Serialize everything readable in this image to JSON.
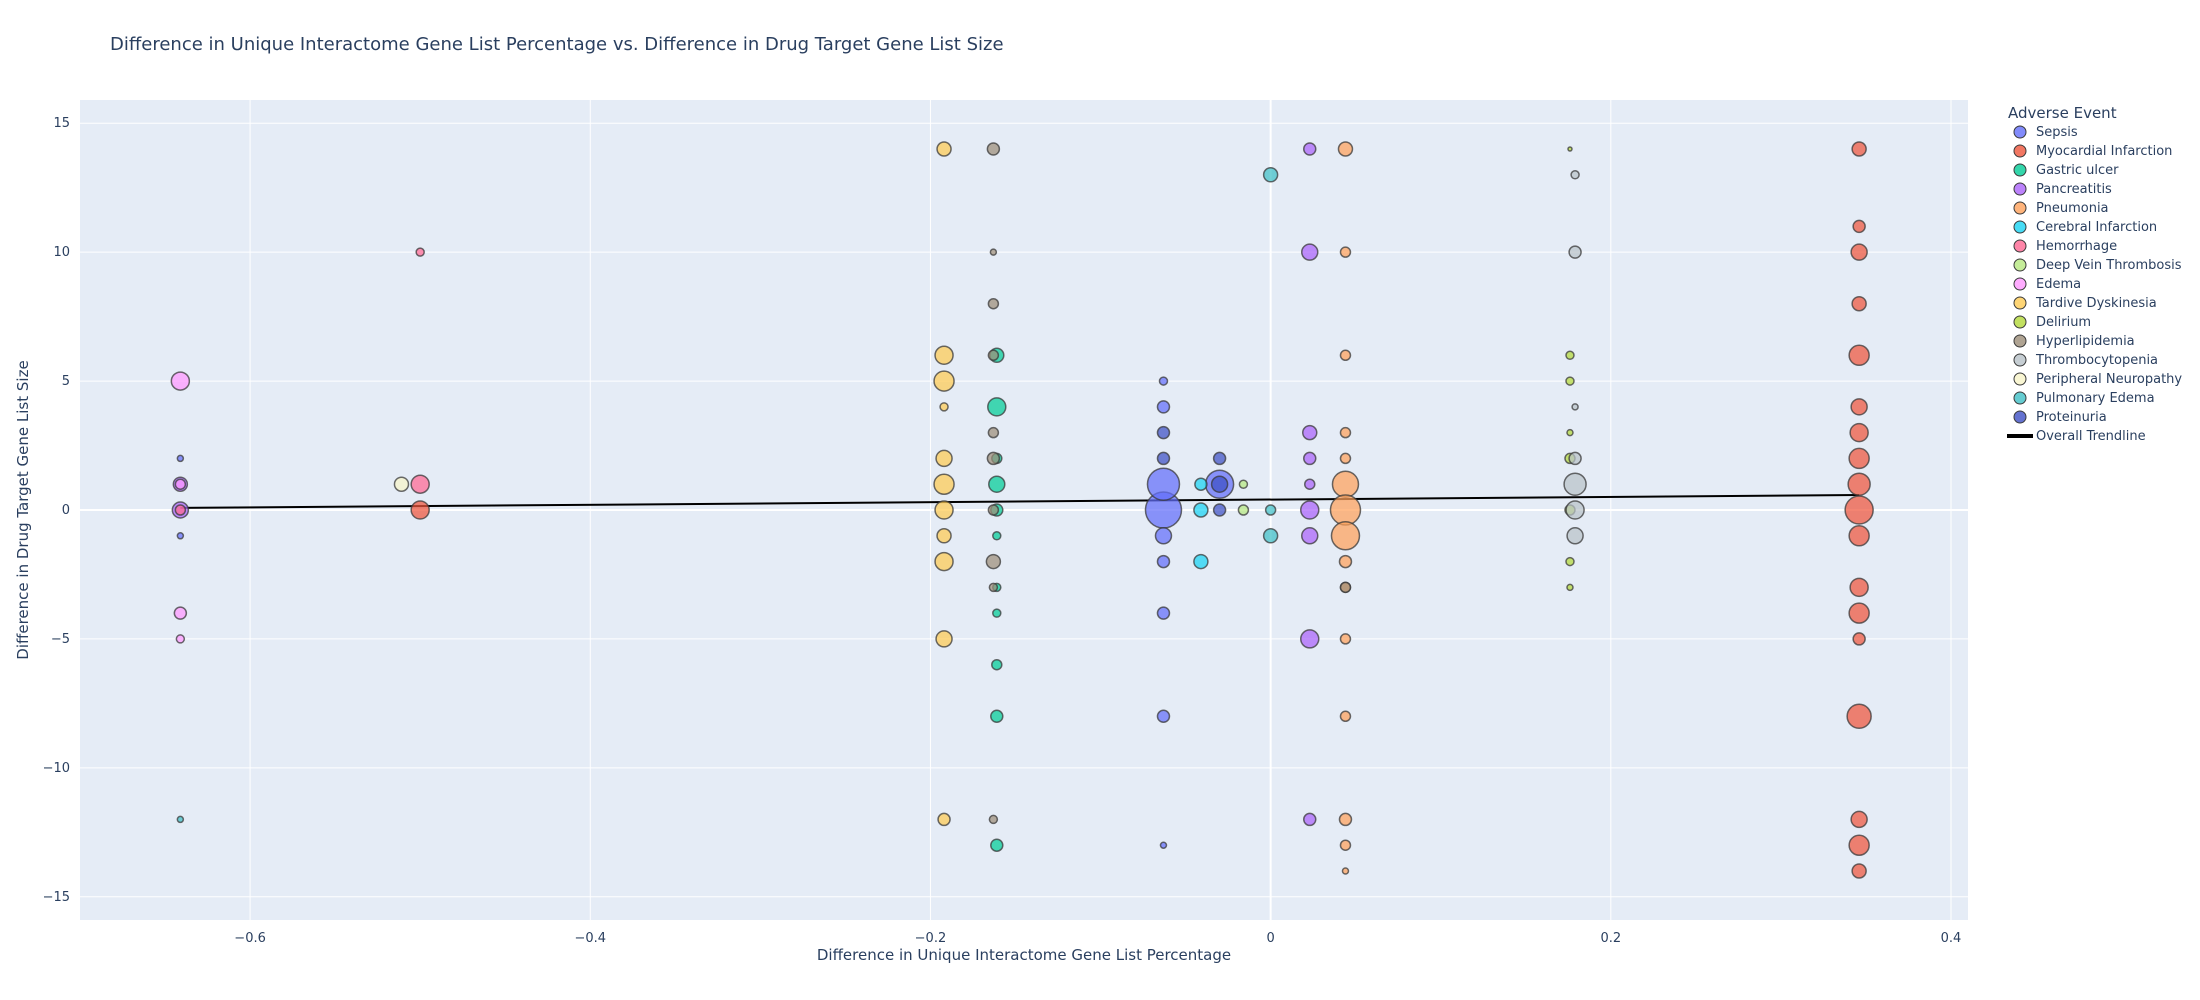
{
  "chart_data": {
    "type": "scatter",
    "title": "Difference in Unique Interactome Gene List Percentage vs. Difference in Drug Target Gene List Size",
    "xlabel": "Difference in Unique Interactome Gene List Percentage",
    "ylabel": "Difference in Drug Target Gene List Size",
    "xlim": [
      -0.7,
      0.41
    ],
    "ylim": [
      -15.9,
      15.9
    ],
    "x_ticks": [
      -0.6,
      -0.4,
      -0.2,
      0,
      0.2,
      0.4
    ],
    "x_tick_labels": [
      "−0.6",
      "−0.4",
      "−0.2",
      "0",
      "0.2",
      "0.4"
    ],
    "y_ticks": [
      -15,
      -10,
      -5,
      0,
      5,
      10,
      15
    ],
    "y_tick_labels": [
      "−15",
      "−10",
      "−5",
      "0",
      "5",
      "10",
      "15"
    ],
    "grid": true,
    "legend_title": "Adverse Event",
    "legend_position": "right",
    "series": [
      {
        "name": "Sepsis",
        "color": "#636efa",
        "points": [
          {
            "x": -0.063,
            "y": 0,
            "s": 18
          },
          {
            "x": -0.063,
            "y": 1,
            "s": 16
          },
          {
            "x": -0.063,
            "y": -1,
            "s": 8
          },
          {
            "x": -0.063,
            "y": -2,
            "s": 6
          },
          {
            "x": -0.063,
            "y": 4,
            "s": 6
          },
          {
            "x": -0.063,
            "y": -8,
            "s": 6
          },
          {
            "x": -0.063,
            "y": -4,
            "s": 6
          },
          {
            "x": -0.063,
            "y": 5,
            "s": 4
          },
          {
            "x": -0.063,
            "y": -13,
            "s": 3
          },
          {
            "x": -0.641,
            "y": 2,
            "s": 3
          },
          {
            "x": -0.641,
            "y": -1,
            "s": 3
          },
          {
            "x": -0.03,
            "y": 1,
            "s": 14
          }
        ]
      },
      {
        "name": "Myocardial Infarction",
        "color": "#ef553b",
        "points": [
          {
            "x": 0.346,
            "y": 14,
            "s": 7
          },
          {
            "x": 0.346,
            "y": 11,
            "s": 6
          },
          {
            "x": 0.346,
            "y": 10,
            "s": 8
          },
          {
            "x": 0.346,
            "y": 8,
            "s": 7
          },
          {
            "x": 0.346,
            "y": 6,
            "s": 10
          },
          {
            "x": 0.346,
            "y": 4,
            "s": 8
          },
          {
            "x": 0.346,
            "y": 3,
            "s": 9
          },
          {
            "x": 0.346,
            "y": 2,
            "s": 10
          },
          {
            "x": 0.346,
            "y": 1,
            "s": 11
          },
          {
            "x": 0.346,
            "y": 0,
            "s": 14
          },
          {
            "x": 0.346,
            "y": -1,
            "s": 10
          },
          {
            "x": 0.346,
            "y": -3,
            "s": 9
          },
          {
            "x": 0.346,
            "y": -4,
            "s": 10
          },
          {
            "x": 0.346,
            "y": -5,
            "s": 6
          },
          {
            "x": 0.346,
            "y": -8,
            "s": 12
          },
          {
            "x": 0.346,
            "y": -12,
            "s": 8
          },
          {
            "x": 0.346,
            "y": -13,
            "s": 10
          },
          {
            "x": 0.346,
            "y": -14,
            "s": 7
          },
          {
            "x": -0.5,
            "y": 0,
            "s": 9
          }
        ]
      },
      {
        "name": "Gastric ulcer",
        "color": "#00cc96",
        "points": [
          {
            "x": -0.161,
            "y": 6,
            "s": 7
          },
          {
            "x": -0.161,
            "y": 4,
            "s": 9
          },
          {
            "x": -0.161,
            "y": 2,
            "s": 5
          },
          {
            "x": -0.161,
            "y": 1,
            "s": 8
          },
          {
            "x": -0.161,
            "y": 0,
            "s": 6
          },
          {
            "x": -0.161,
            "y": -1,
            "s": 4
          },
          {
            "x": -0.161,
            "y": -3,
            "s": 4
          },
          {
            "x": -0.161,
            "y": -4,
            "s": 4
          },
          {
            "x": -0.161,
            "y": -6,
            "s": 5
          },
          {
            "x": -0.161,
            "y": -8,
            "s": 6
          },
          {
            "x": -0.161,
            "y": -13,
            "s": 6
          }
        ]
      },
      {
        "name": "Pancreatitis",
        "color": "#ab63fa",
        "points": [
          {
            "x": 0.023,
            "y": 14,
            "s": 6
          },
          {
            "x": 0.023,
            "y": 10,
            "s": 8
          },
          {
            "x": 0.023,
            "y": 3,
            "s": 7
          },
          {
            "x": 0.023,
            "y": 2,
            "s": 6
          },
          {
            "x": 0.023,
            "y": 1,
            "s": 5
          },
          {
            "x": 0.023,
            "y": 0,
            "s": 9
          },
          {
            "x": 0.023,
            "y": -1,
            "s": 8
          },
          {
            "x": 0.023,
            "y": -5,
            "s": 9
          },
          {
            "x": 0.023,
            "y": -12,
            "s": 6
          },
          {
            "x": -0.641,
            "y": 1,
            "s": 7
          },
          {
            "x": -0.641,
            "y": 0,
            "s": 8
          }
        ]
      },
      {
        "name": "Pneumonia",
        "color": "#ffa15a",
        "points": [
          {
            "x": 0.044,
            "y": 14,
            "s": 7
          },
          {
            "x": 0.044,
            "y": 10,
            "s": 5
          },
          {
            "x": 0.044,
            "y": 6,
            "s": 5
          },
          {
            "x": 0.044,
            "y": 3,
            "s": 5
          },
          {
            "x": 0.044,
            "y": 2,
            "s": 5
          },
          {
            "x": 0.044,
            "y": 1,
            "s": 13
          },
          {
            "x": 0.044,
            "y": 0,
            "s": 15
          },
          {
            "x": 0.044,
            "y": -1,
            "s": 14
          },
          {
            "x": 0.044,
            "y": -2,
            "s": 6
          },
          {
            "x": 0.044,
            "y": -3,
            "s": 5
          },
          {
            "x": 0.044,
            "y": -5,
            "s": 5
          },
          {
            "x": 0.044,
            "y": -8,
            "s": 5
          },
          {
            "x": 0.044,
            "y": -12,
            "s": 6
          },
          {
            "x": 0.044,
            "y": -13,
            "s": 5
          },
          {
            "x": 0.044,
            "y": -14,
            "s": 3
          }
        ]
      },
      {
        "name": "Cerebral Infarction",
        "color": "#19d3f3",
        "points": [
          {
            "x": -0.041,
            "y": 1,
            "s": 6
          },
          {
            "x": -0.041,
            "y": 0,
            "s": 7
          },
          {
            "x": -0.041,
            "y": -2,
            "s": 7
          }
        ]
      },
      {
        "name": "Hemorrhage",
        "color": "#ff6692",
        "points": [
          {
            "x": -0.5,
            "y": 10,
            "s": 4
          },
          {
            "x": -0.5,
            "y": 1,
            "s": 9
          },
          {
            "x": -0.641,
            "y": 0,
            "s": 5
          }
        ]
      },
      {
        "name": "Deep Vein Thrombosis",
        "color": "#b6e880",
        "points": [
          {
            "x": -0.016,
            "y": 1,
            "s": 4
          },
          {
            "x": -0.016,
            "y": 0,
            "s": 5
          }
        ]
      },
      {
        "name": "Edema",
        "color": "#ff97ff",
        "points": [
          {
            "x": -0.641,
            "y": 5,
            "s": 9
          },
          {
            "x": -0.641,
            "y": 1,
            "s": 5
          },
          {
            "x": -0.641,
            "y": -4,
            "s": 6
          },
          {
            "x": -0.641,
            "y": -5,
            "s": 4
          }
        ]
      },
      {
        "name": "Tardive Dyskinesia",
        "color": "#fecb52",
        "points": [
          {
            "x": -0.192,
            "y": 14,
            "s": 7
          },
          {
            "x": -0.192,
            "y": 6,
            "s": 9
          },
          {
            "x": -0.192,
            "y": 5,
            "s": 10
          },
          {
            "x": -0.192,
            "y": 4,
            "s": 4
          },
          {
            "x": -0.192,
            "y": 2,
            "s": 8
          },
          {
            "x": -0.192,
            "y": 1,
            "s": 10
          },
          {
            "x": -0.192,
            "y": 0,
            "s": 9
          },
          {
            "x": -0.192,
            "y": -1,
            "s": 7
          },
          {
            "x": -0.192,
            "y": -2,
            "s": 9
          },
          {
            "x": -0.192,
            "y": -5,
            "s": 8
          },
          {
            "x": -0.192,
            "y": -12,
            "s": 6
          }
        ]
      },
      {
        "name": "Delirium",
        "color": "#b3d838",
        "points": [
          {
            "x": 0.176,
            "y": 6,
            "s": 4
          },
          {
            "x": 0.176,
            "y": 5,
            "s": 4
          },
          {
            "x": 0.176,
            "y": 3,
            "s": 3
          },
          {
            "x": 0.176,
            "y": 2,
            "s": 5
          },
          {
            "x": 0.176,
            "y": 0,
            "s": 5
          },
          {
            "x": 0.176,
            "y": -2,
            "s": 4
          },
          {
            "x": 0.176,
            "y": -3,
            "s": 3
          },
          {
            "x": 0.176,
            "y": 14,
            "s": 2
          }
        ]
      },
      {
        "name": "Hyperlipidemia",
        "color": "#9c8d78",
        "points": [
          {
            "x": -0.163,
            "y": 14,
            "s": 6
          },
          {
            "x": -0.163,
            "y": 10,
            "s": 3
          },
          {
            "x": -0.163,
            "y": 8,
            "s": 5
          },
          {
            "x": -0.163,
            "y": 6,
            "s": 5
          },
          {
            "x": -0.163,
            "y": 3,
            "s": 5
          },
          {
            "x": -0.163,
            "y": 2,
            "s": 6
          },
          {
            "x": -0.163,
            "y": 0,
            "s": 5
          },
          {
            "x": -0.163,
            "y": -2,
            "s": 7
          },
          {
            "x": -0.163,
            "y": -3,
            "s": 4
          },
          {
            "x": -0.163,
            "y": -12,
            "s": 4
          },
          {
            "x": 0.044,
            "y": -3,
            "s": 5
          }
        ]
      },
      {
        "name": "Thrombocytopenia",
        "color": "#b8c2c8",
        "points": [
          {
            "x": 0.179,
            "y": 13,
            "s": 4
          },
          {
            "x": 0.179,
            "y": 10,
            "s": 6
          },
          {
            "x": 0.179,
            "y": 4,
            "s": 3
          },
          {
            "x": 0.179,
            "y": 2,
            "s": 6
          },
          {
            "x": 0.179,
            "y": 1,
            "s": 11
          },
          {
            "x": 0.179,
            "y": 0,
            "s": 9
          },
          {
            "x": 0.179,
            "y": -1,
            "s": 8
          }
        ]
      },
      {
        "name": "Peripheral Neuropathy",
        "color": "#f7f4c8",
        "points": [
          {
            "x": -0.511,
            "y": 1,
            "s": 7
          }
        ]
      },
      {
        "name": "Pulmonary Edema",
        "color": "#3fbfc6",
        "points": [
          {
            "x": 0,
            "y": 13,
            "s": 7
          },
          {
            "x": 0,
            "y": 0,
            "s": 5
          },
          {
            "x": 0,
            "y": -1,
            "s": 7
          },
          {
            "x": -0.641,
            "y": -12,
            "s": 3
          }
        ]
      },
      {
        "name": "Proteinuria",
        "color": "#3d4fc4",
        "points": [
          {
            "x": -0.063,
            "y": 3,
            "s": 6
          },
          {
            "x": -0.063,
            "y": 2,
            "s": 6
          },
          {
            "x": -0.03,
            "y": 2,
            "s": 6
          },
          {
            "x": -0.03,
            "y": 0,
            "s": 6
          },
          {
            "x": -0.03,
            "y": 1,
            "s": 8
          }
        ]
      }
    ],
    "trendline": {
      "name": "Overall Trendline",
      "color": "#000000",
      "x": [
        -0.641,
        0.346
      ],
      "y": [
        0.08,
        0.58
      ]
    }
  }
}
